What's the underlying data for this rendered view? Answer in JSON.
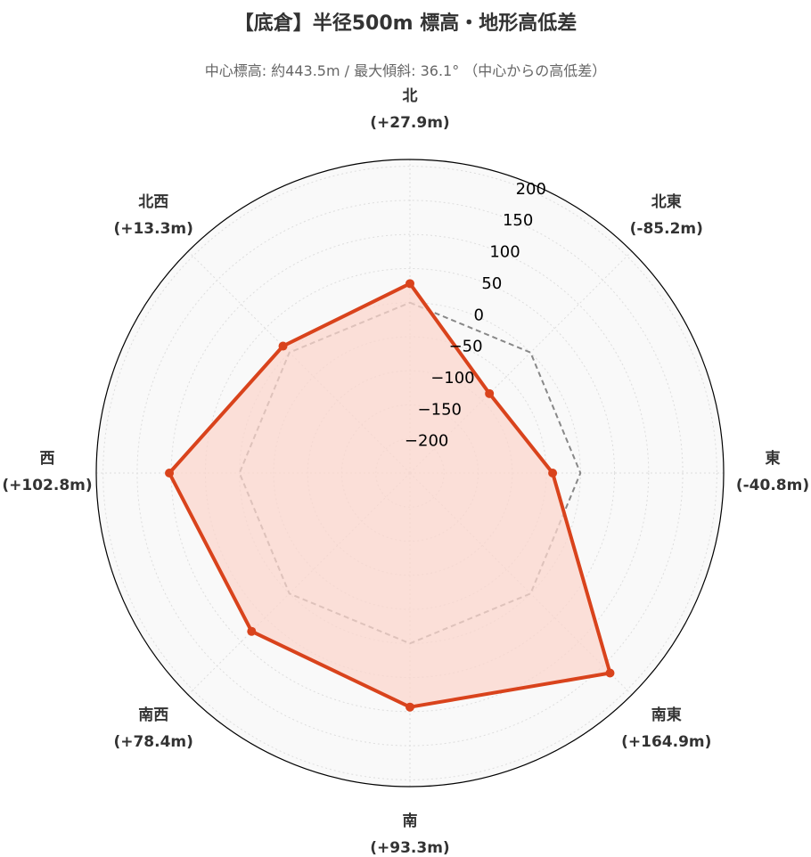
{
  "title": "【底倉】半径500m 標高・地形高低差",
  "subtitle": "中心標高: 約443.5m / 最大傾斜: 36.1° （中心からの高低差）",
  "chart_data": {
    "type": "radar",
    "categories": [
      "北",
      "北東",
      "東",
      "南東",
      "南",
      "南西",
      "西",
      "北西"
    ],
    "value_labels": [
      "(+27.9m)",
      "(-85.2m)",
      "(-40.8m)",
      "(+164.9m)",
      "(+93.3m)",
      "(+78.4m)",
      "(+102.8m)",
      "(+13.3m)"
    ],
    "series": [
      {
        "values": [
          27.9,
          -85.2,
          -40.8,
          164.9,
          93.3,
          78.4,
          102.8,
          13.3
        ],
        "color": "#d9431c",
        "fill": "#fbd5cc"
      },
      {
        "values": [
          0,
          0,
          0,
          0,
          0,
          0,
          0,
          0
        ],
        "color": "#888888",
        "style": "dashed"
      }
    ],
    "rlim": [
      -250,
      210
    ],
    "rticks": [
      -200,
      -150,
      -100,
      -50,
      0,
      50,
      100,
      150,
      200
    ],
    "rtick_labels": [
      "−200",
      "−150",
      "−100",
      "−50",
      "0",
      "50",
      "100",
      "150",
      "200"
    ],
    "grid": true,
    "background": "#f9f9f9"
  }
}
